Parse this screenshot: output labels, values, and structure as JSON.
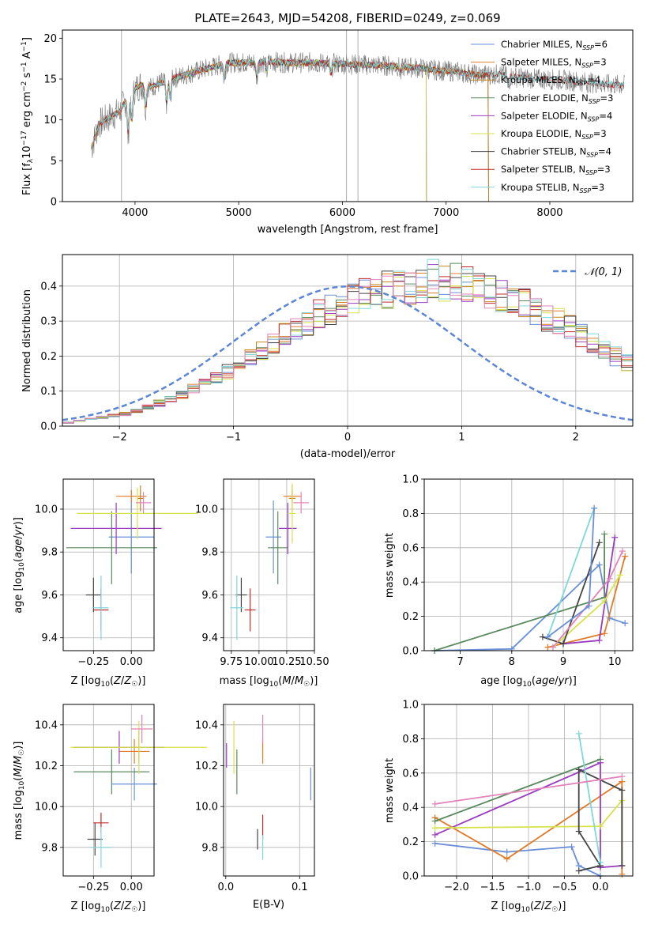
{
  "colors": {
    "chabrier_miles": "#6a8fd8",
    "salpeter_miles": "#e07b28",
    "kroupa_miles": "#c8851a",
    "chabrier_elodie": "#5b8a5f",
    "salpeter_elodie": "#9a3cc0",
    "kroupa_elodie": "#d6e34a",
    "chabrier_stelib": "#444444",
    "salpeter_stelib": "#c22b2b",
    "kroupa_stelib": "#7fd8d8",
    "spectrum_data": "#7a7a7a",
    "pink": "#e283b9",
    "normal_curve": "#5b86d6"
  },
  "chart_data": [
    {
      "id": "spectrum",
      "type": "line",
      "title": "PLATE=2643, MJD=54208, FIBERID=0249, z=0.069",
      "xlabel": "wavelength [Angstrom, rest frame]",
      "ylabel": "Flux [f_λ10^-17 erg cm^-2 s^-1 A^-1]",
      "xlim": [
        3300,
        8800
      ],
      "ylim": [
        0,
        21
      ],
      "xticks": [
        "4000",
        "5000",
        "6000",
        "7000",
        "8000"
      ],
      "yticks": [
        "0",
        "5",
        "10",
        "15",
        "20"
      ],
      "grid": false,
      "legend_position": "top-right",
      "continuum": [
        [
          3580,
          6.5
        ],
        [
          3650,
          9.5
        ],
        [
          3750,
          10.3
        ],
        [
          3850,
          11.0
        ],
        [
          3950,
          13.2
        ],
        [
          4050,
          14.3
        ],
        [
          4150,
          14.0
        ],
        [
          4300,
          14.8
        ],
        [
          4500,
          15.6
        ],
        [
          4700,
          16.3
        ],
        [
          4900,
          17.0
        ],
        [
          5100,
          17.0
        ],
        [
          5300,
          17.1
        ],
        [
          5500,
          17.0
        ],
        [
          5700,
          17.0
        ],
        [
          5900,
          16.9
        ],
        [
          6100,
          16.8
        ],
        [
          6300,
          16.7
        ],
        [
          6500,
          16.6
        ],
        [
          6700,
          16.4
        ],
        [
          6900,
          16.1
        ],
        [
          7100,
          15.9
        ],
        [
          7300,
          15.5
        ],
        [
          7500,
          15.6
        ],
        [
          7700,
          15.2
        ],
        [
          7900,
          15.0
        ],
        [
          8100,
          14.9
        ],
        [
          8300,
          14.7
        ],
        [
          8500,
          14.4
        ],
        [
          8720,
          14.2
        ]
      ],
      "legend": [
        {
          "label": "Chabrier MILES",
          "n": "6",
          "color_key": "chabrier_miles"
        },
        {
          "label": "Salpeter MILES",
          "n": "3",
          "color_key": "salpeter_miles"
        },
        {
          "label": "Kroupa MILES",
          "n": "4",
          "color_key": "kroupa_miles"
        },
        {
          "label": "Chabrier ELODIE",
          "n": "3",
          "color_key": "chabrier_elodie"
        },
        {
          "label": "Salpeter ELODIE",
          "n": "4",
          "color_key": "salpeter_elodie"
        },
        {
          "label": "Kroupa ELODIE",
          "n": "3",
          "color_key": "kroupa_elodie"
        },
        {
          "label": "Chabrier STELIB",
          "n": "4",
          "color_key": "chabrier_stelib"
        },
        {
          "label": "Salpeter STELIB",
          "n": "3",
          "color_key": "salpeter_stelib"
        },
        {
          "label": "Kroupa STELIB",
          "n": "3",
          "color_key": "kroupa_stelib"
        }
      ]
    },
    {
      "id": "residual_hist",
      "type": "line",
      "xlabel": "(data-model)/error",
      "ylabel": "Normed distribution",
      "xlim": [
        -2.5,
        2.5
      ],
      "ylim": [
        0,
        0.49
      ],
      "xticks": [
        "−2",
        "−1",
        "0",
        "1",
        "2"
      ],
      "yticks": [
        "0.0",
        "0.1",
        "0.2",
        "0.3",
        "0.4"
      ],
      "grid": true,
      "legend_position": "top-right",
      "legend_label": "𝒩(0, 1)",
      "bin_width": 0.1,
      "bin_start": -2.5,
      "hist_shape": [
        0.01,
        0.015,
        0.02,
        0.025,
        0.03,
        0.035,
        0.045,
        0.055,
        0.065,
        0.075,
        0.09,
        0.105,
        0.12,
        0.135,
        0.155,
        0.175,
        0.195,
        0.215,
        0.235,
        0.26,
        0.28,
        0.3,
        0.32,
        0.335,
        0.35,
        0.36,
        0.37,
        0.38,
        0.39,
        0.4,
        0.4,
        0.41,
        0.42,
        0.415,
        0.41,
        0.405,
        0.4,
        0.39,
        0.38,
        0.365,
        0.35,
        0.335,
        0.315,
        0.3,
        0.28,
        0.26,
        0.24,
        0.22,
        0.2,
        0.18,
        0.165,
        0.15,
        0.135,
        0.12,
        0.105,
        0.095,
        0.085,
        0.075,
        0.065,
        0.055,
        0.05,
        0.045,
        0.04,
        0.035,
        0.03,
        0.025
      ]
    },
    {
      "id": "age_vs_Z",
      "type": "scatter",
      "xlabel": "Z [log10(Z/Z☉)]",
      "ylabel": "age  [log10(age/yr)]",
      "xlim": [
        -0.45,
        0.15
      ],
      "ylim": [
        9.34,
        10.14
      ],
      "xticks": [
        "−0.25",
        "0.00"
      ],
      "yticks": [
        "9.4",
        "9.6",
        "9.8",
        "10.0"
      ],
      "grid": true,
      "points": [
        {
          "c": "chabrier_miles",
          "x": 0.0,
          "xe": 0.15,
          "y": 9.87,
          "ye": 0.17
        },
        {
          "c": "salpeter_miles",
          "x": 0.0,
          "xe": 0.1,
          "y": 10.06,
          "ye": 0.03
        },
        {
          "c": "kroupa_miles",
          "x": 0.06,
          "xe": 0.02,
          "y": 10.05,
          "ye": 0.06
        },
        {
          "c": "chabrier_elodie",
          "x": -0.13,
          "xe": 0.3,
          "y": 9.82,
          "ye": 0.17
        },
        {
          "c": "salpeter_elodie",
          "x": -0.1,
          "xe": 0.3,
          "y": 9.91,
          "ye": 0.12
        },
        {
          "c": "kroupa_elodie",
          "x": 0.04,
          "xe": 0.4,
          "y": 9.98,
          "ye": 0.12
        },
        {
          "c": "chabrier_stelib",
          "x": -0.25,
          "xe": 0.05,
          "y": 9.6,
          "ye": 0.08
        },
        {
          "c": "salpeter_stelib",
          "x": -0.2,
          "xe": 0.05,
          "y": 9.53,
          "ye": 0.1
        },
        {
          "c": "kroupa_stelib",
          "x": -0.2,
          "xe": 0.05,
          "y": 9.54,
          "ye": 0.15
        },
        {
          "c": "pink",
          "x": 0.08,
          "xe": 0.05,
          "y": 10.03,
          "ye": 0.05
        }
      ]
    },
    {
      "id": "age_vs_mass",
      "type": "scatter",
      "xlabel": "mass [log10(M/M☉)]",
      "ylabel": "",
      "xlim": [
        9.68,
        10.5
      ],
      "ylim": [
        9.34,
        10.14
      ],
      "xticks": [
        "9.75",
        "10.00",
        "10.25",
        "10.50"
      ],
      "yticks": [
        "9.4",
        "9.6",
        "9.8",
        "10.0"
      ],
      "grid": true,
      "points": [
        {
          "c": "chabrier_miles",
          "x": 10.13,
          "xe": 0.07,
          "y": 9.87,
          "ye": 0.17
        },
        {
          "c": "salpeter_miles",
          "x": 10.3,
          "xe": 0.08,
          "y": 10.06,
          "ye": 0.03
        },
        {
          "c": "kroupa_miles",
          "x": 10.3,
          "xe": 0.03,
          "y": 10.05,
          "ye": 0.06
        },
        {
          "c": "chabrier_elodie",
          "x": 10.17,
          "xe": 0.09,
          "y": 9.82,
          "ye": 0.17
        },
        {
          "c": "salpeter_elodie",
          "x": 10.26,
          "xe": 0.08,
          "y": 9.91,
          "ye": 0.12
        },
        {
          "c": "kroupa_elodie",
          "x": 10.3,
          "xe": 0.03,
          "y": 9.98,
          "ye": 0.14
        },
        {
          "c": "chabrier_stelib",
          "x": 9.84,
          "xe": 0.05,
          "y": 9.6,
          "ye": 0.08
        },
        {
          "c": "salpeter_stelib",
          "x": 9.92,
          "xe": 0.05,
          "y": 9.53,
          "ye": 0.1
        },
        {
          "c": "kroupa_stelib",
          "x": 9.8,
          "xe": 0.06,
          "y": 9.54,
          "ye": 0.15
        },
        {
          "c": "pink",
          "x": 10.38,
          "xe": 0.07,
          "y": 10.03,
          "ye": 0.05
        }
      ]
    },
    {
      "id": "mass_weight_vs_age",
      "type": "line",
      "xlabel": "age  [log10(age/yr)]",
      "ylabel": "mass weight",
      "xlim": [
        6.3,
        10.35
      ],
      "ylim": [
        0,
        1
      ],
      "xticks": [
        "7",
        "8",
        "9",
        "10"
      ],
      "yticks": [
        "0.0",
        "0.2",
        "0.4",
        "0.6",
        "0.8",
        "1.0"
      ],
      "grid": true,
      "series": [
        {
          "c": "chabrier_miles",
          "pts": [
            [
              6.5,
              0.0
            ],
            [
              8.0,
              0.01
            ],
            [
              9.7,
              0.5
            ],
            [
              9.9,
              0.19
            ],
            [
              10.2,
              0.16
            ]
          ]
        },
        {
          "c": "salpeter_miles",
          "pts": [
            [
              8.7,
              0.02
            ],
            [
              9.8,
              0.1
            ],
            [
              10.2,
              0.55
            ]
          ]
        },
        {
          "c": "chabrier_elodie",
          "pts": [
            [
              6.5,
              0.0
            ],
            [
              9.8,
              0.31
            ],
            [
              9.8,
              0.68
            ]
          ]
        },
        {
          "c": "salpeter_elodie",
          "pts": [
            [
              9.0,
              0.04
            ],
            [
              9.7,
              0.06
            ],
            [
              10.0,
              0.66
            ]
          ]
        },
        {
          "c": "kroupa_elodie",
          "pts": [
            [
              8.8,
              0.02
            ],
            [
              9.8,
              0.29
            ],
            [
              10.1,
              0.44
            ]
          ]
        },
        {
          "c": "chabrier_stelib",
          "pts": [
            [
              8.6,
              0.08
            ],
            [
              9.0,
              0.04
            ],
            [
              9.7,
              0.63
            ]
          ]
        },
        {
          "c": "kroupa_stelib",
          "pts": [
            [
              8.7,
              0.08
            ],
            [
              9.6,
              0.83
            ]
          ]
        },
        {
          "c": "pink",
          "pts": [
            [
              8.8,
              0.02
            ],
            [
              9.9,
              0.42
            ],
            [
              10.15,
              0.58
            ]
          ]
        },
        {
          "c": "chabrier_miles",
          "pts": [
            [
              8.7,
              0.08
            ],
            [
              9.5,
              0.26
            ],
            [
              9.6,
              0.83
            ]
          ]
        }
      ]
    },
    {
      "id": "mass_vs_Z",
      "type": "scatter",
      "xlabel": "Z [log10(Z/Z☉)]",
      "ylabel": "mass [log10(M/M☉)]",
      "xlim": [
        -0.45,
        0.15
      ],
      "ylim": [
        9.66,
        10.5
      ],
      "xticks": [
        "−0.25",
        "0.00"
      ],
      "yticks": [
        "9.8",
        "10.0",
        "10.2",
        "10.4"
      ],
      "grid": true,
      "points": [
        {
          "c": "chabrier_miles",
          "x": 0.02,
          "xe": 0.15,
          "y": 10.11,
          "ye": 0.08
        },
        {
          "c": "salpeter_miles",
          "x": 0.02,
          "xe": 0.1,
          "y": 10.27,
          "ye": 0.06
        },
        {
          "c": "kroupa_miles",
          "x": 0.05,
          "xe": 0.03,
          "y": 10.29,
          "ye": 0.08
        },
        {
          "c": "chabrier_elodie",
          "x": -0.13,
          "xe": 0.25,
          "y": 10.17,
          "ye": 0.11
        },
        {
          "c": "salpeter_elodie",
          "x": -0.08,
          "xe": 0.3,
          "y": 10.29,
          "ye": 0.08
        },
        {
          "c": "kroupa_elodie",
          "x": 0.05,
          "xe": 0.45,
          "y": 10.29,
          "ye": 0.13
        },
        {
          "c": "chabrier_stelib",
          "x": -0.24,
          "xe": 0.05,
          "y": 9.84,
          "ye": 0.08
        },
        {
          "c": "salpeter_stelib",
          "x": -0.2,
          "xe": 0.05,
          "y": 9.92,
          "ye": 0.05
        },
        {
          "c": "kroupa_stelib",
          "x": -0.2,
          "xe": 0.07,
          "y": 9.8,
          "ye": 0.1
        },
        {
          "c": "pink",
          "x": 0.07,
          "xe": 0.07,
          "y": 10.38,
          "ye": 0.07
        }
      ]
    },
    {
      "id": "mass_vs_ebv",
      "type": "scatter",
      "xlabel": "E(B-V)",
      "ylabel": "",
      "xlim": [
        -0.003,
        0.12
      ],
      "ylim": [
        9.66,
        10.5
      ],
      "xticks": [
        "0.0",
        "0.1"
      ],
      "yticks": [
        "9.8",
        "10.0",
        "10.2",
        "10.4"
      ],
      "grid": true,
      "points": [
        {
          "c": "chabrier_miles",
          "x": 0.115,
          "xe": 0,
          "y": 10.11,
          "ye": 0.08
        },
        {
          "c": "salpeter_miles",
          "x": 0.05,
          "xe": 0,
          "y": 10.27,
          "ye": 0.06
        },
        {
          "c": "chabrier_elodie",
          "x": 0.015,
          "xe": 0,
          "y": 10.17,
          "ye": 0.11
        },
        {
          "c": "salpeter_elodie",
          "x": 0.001,
          "xe": 0,
          "y": 10.25,
          "ye": 0.06
        },
        {
          "c": "kroupa_elodie",
          "x": 0.011,
          "xe": 0,
          "y": 10.29,
          "ye": 0.13
        },
        {
          "c": "chabrier_stelib",
          "x": 0.043,
          "xe": 0,
          "y": 9.84,
          "ye": 0.05
        },
        {
          "c": "salpeter_stelib",
          "x": 0.05,
          "xe": 0,
          "y": 9.9,
          "ye": 0.06
        },
        {
          "c": "kroupa_stelib",
          "x": 0.05,
          "xe": 0,
          "y": 9.8,
          "ye": 0.06
        },
        {
          "c": "pink",
          "x": 0.05,
          "xe": 0,
          "y": 10.38,
          "ye": 0.07
        }
      ]
    },
    {
      "id": "mass_weight_vs_Z",
      "type": "line",
      "xlabel": "Z [log10(Z/Z☉)]",
      "ylabel": "mass weight",
      "xlim": [
        -2.45,
        0.45
      ],
      "ylim": [
        0,
        1
      ],
      "xticks": [
        "−2.0",
        "−1.5",
        "−1.0",
        "−0.5",
        "0.0"
      ],
      "yticks": [
        "0.0",
        "0.2",
        "0.4",
        "0.6",
        "0.8",
        "1.0"
      ],
      "grid": true,
      "series": [
        {
          "c": "chabrier_miles",
          "pts": [
            [
              -2.3,
              0.19
            ],
            [
              -1.3,
              0.14
            ],
            [
              -0.4,
              0.17
            ],
            [
              -0.3,
              0.06
            ],
            [
              0.0,
              0.0
            ]
          ]
        },
        {
          "c": "salpeter_miles",
          "pts": [
            [
              -2.3,
              0.34
            ],
            [
              -1.3,
              0.1
            ],
            [
              0.3,
              0.55
            ],
            [
              0.3,
              0.01
            ]
          ]
        },
        {
          "c": "chabrier_elodie",
          "pts": [
            [
              -2.3,
              0.32
            ],
            [
              0.0,
              0.68
            ]
          ]
        },
        {
          "c": "salpeter_elodie",
          "pts": [
            [
              -2.3,
              0.24
            ],
            [
              0.0,
              0.66
            ],
            [
              0.0,
              0.05
            ],
            [
              0.3,
              0.06
            ]
          ]
        },
        {
          "c": "kroupa_elodie",
          "pts": [
            [
              -2.3,
              0.28
            ],
            [
              0.0,
              0.29
            ],
            [
              0.3,
              0.44
            ]
          ]
        },
        {
          "c": "chabrier_stelib",
          "pts": [
            [
              -0.3,
              0.03
            ],
            [
              0.0,
              0.06
            ],
            [
              -0.3,
              0.26
            ],
            [
              -0.3,
              0.62
            ],
            [
              0.3,
              0.5
            ],
            [
              0.3,
              0.06
            ]
          ]
        },
        {
          "c": "kroupa_stelib",
          "pts": [
            [
              -0.3,
              0.83
            ],
            [
              0.0,
              0.08
            ]
          ]
        },
        {
          "c": "pink",
          "pts": [
            [
              -2.3,
              0.42
            ],
            [
              0.3,
              0.58
            ]
          ]
        }
      ]
    }
  ]
}
